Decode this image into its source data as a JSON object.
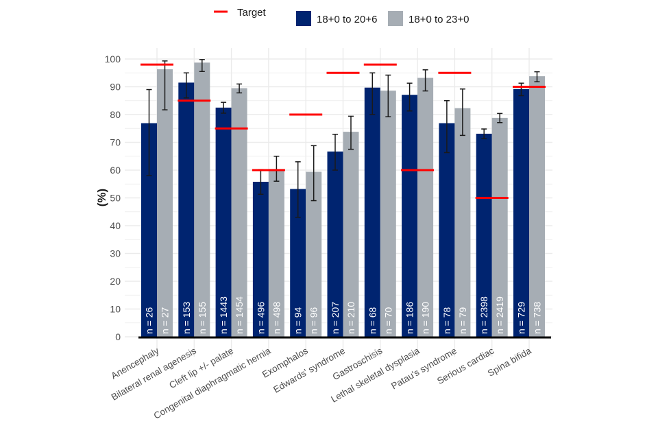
{
  "chart_data": {
    "type": "bar",
    "title": "",
    "xlabel": "",
    "ylabel": "(%)",
    "ylim": [
      0,
      100
    ],
    "yticks": [
      0,
      10,
      20,
      30,
      40,
      50,
      60,
      70,
      80,
      90,
      100
    ],
    "grid": true,
    "legend_position": "top",
    "legend": {
      "target_label": "Target",
      "series_labels": [
        "18+0 to 20+6",
        "18+0 to 23+0"
      ]
    },
    "colors": {
      "series": [
        "#002470",
        "#a6adb4"
      ],
      "target": "#ff0000",
      "error_bar": "#1a1a1a",
      "grid": "#ebebeb",
      "axis": "#000000"
    },
    "categories": [
      "Anencephaly",
      "Bilateral renal agenesis",
      "Cleft lip +/- palate",
      "Congenital diaphragmatic hernia",
      "Exomphalos",
      "Edwards' syndrome",
      "Gastroschisis",
      "Lethal skeletal dysplasia",
      "Patau's syndrome",
      "Serious cardiac",
      "Spina bifida"
    ],
    "series": [
      {
        "name": "18+0 to 20+6",
        "values": [
          76.9,
          91.5,
          82.5,
          55.8,
          53.2,
          66.7,
          89.7,
          87.1,
          76.9,
          73.1,
          89.2
        ],
        "ci_low": [
          58.0,
          86.0,
          80.5,
          51.3,
          43.0,
          60.0,
          80.0,
          81.3,
          66.3,
          71.3,
          86.8
        ],
        "ci_high": [
          89.0,
          95.0,
          84.4,
          60.2,
          63.0,
          72.9,
          95.0,
          91.3,
          85.0,
          74.8,
          91.3
        ],
        "n": [
          "n = 26",
          "n = 153",
          "n = 1443",
          "n = 496",
          "n = 94",
          "n = 207",
          "n = 68",
          "n = 186",
          "n = 78",
          "n = 2398",
          "n = 729"
        ]
      },
      {
        "name": "18+0 to 23+0",
        "values": [
          96.3,
          98.7,
          89.5,
          60.4,
          59.4,
          73.8,
          88.6,
          93.2,
          82.3,
          78.8,
          93.8
        ],
        "ci_low": [
          81.7,
          95.5,
          87.8,
          56.0,
          49.0,
          67.5,
          79.2,
          88.5,
          72.5,
          77.1,
          91.8
        ],
        "ci_high": [
          99.3,
          99.8,
          91.0,
          65.0,
          68.8,
          79.4,
          94.2,
          96.1,
          89.2,
          80.4,
          95.4
        ],
        "n": [
          "n = 27",
          "n = 155",
          "n = 1454",
          "n = 498",
          "n = 96",
          "n = 210",
          "n = 70",
          "n = 190",
          "n = 79",
          "n = 2419",
          "n = 738"
        ]
      }
    ],
    "targets": [
      98,
      85,
      75,
      60,
      80,
      95,
      98,
      60,
      95,
      50,
      90
    ]
  }
}
